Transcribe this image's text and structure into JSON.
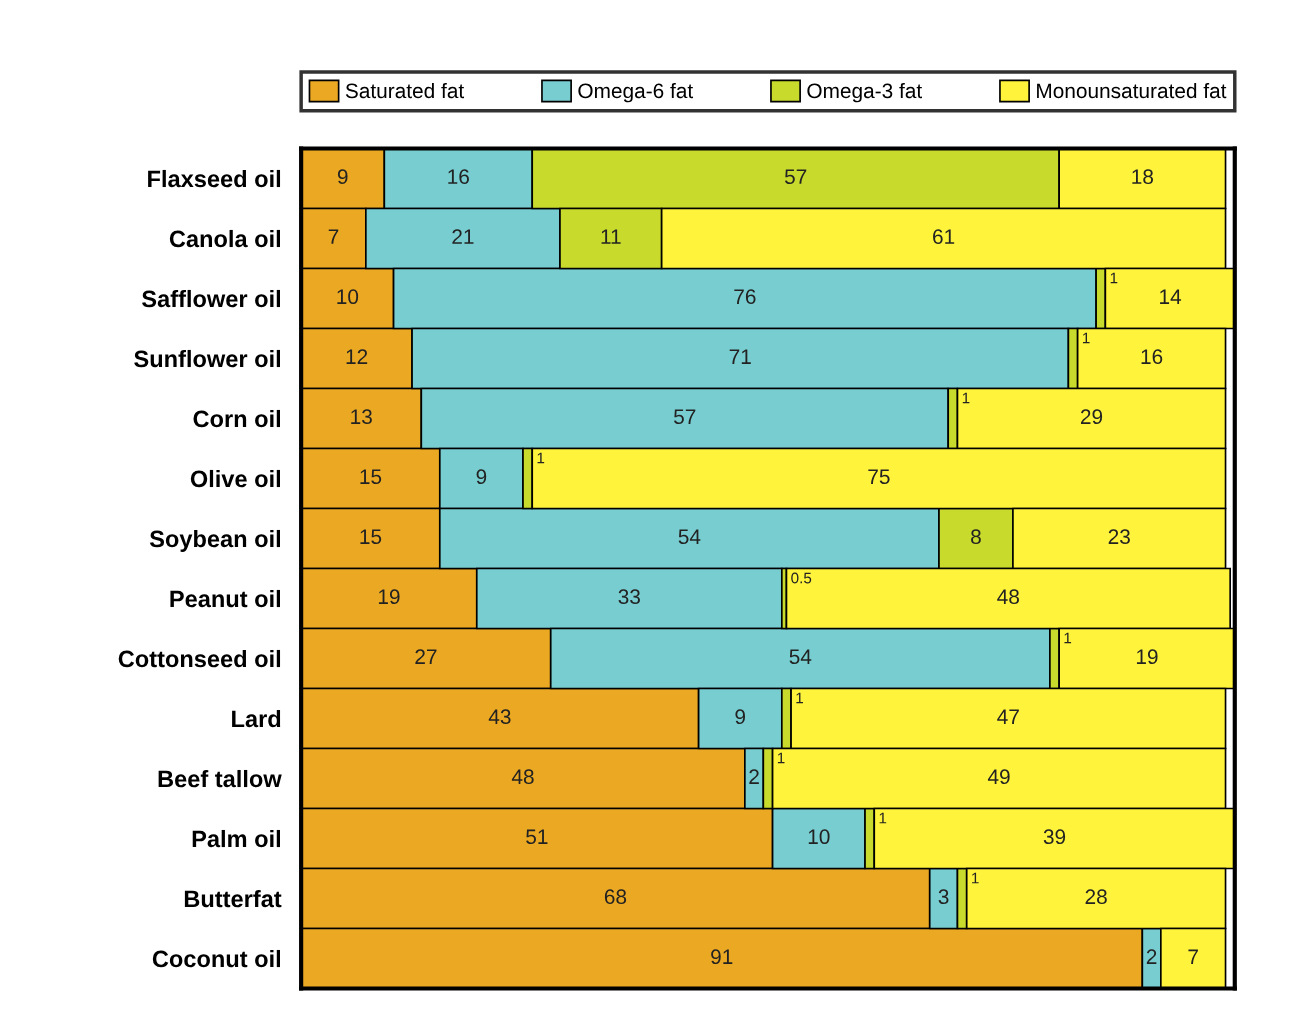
{
  "chart_data": {
    "type": "bar",
    "orientation": "horizontal",
    "stacked": true,
    "data_labels": true,
    "legend": "top",
    "grid": false,
    "tick_labels": "y",
    "categories": [
      "Flaxseed oil",
      "Canola oil",
      "Safflower oil",
      "Sunflower oil",
      "Corn oil",
      "Olive oil",
      "Soybean oil",
      "Peanut oil",
      "Cottonseed oil",
      "Lard",
      "Beef tallow",
      "Palm oil",
      "Butterfat",
      "Coconut oil"
    ],
    "series": [
      {
        "name": "Saturated fat",
        "color": "#eba823",
        "values": [
          9,
          7,
          10,
          12,
          13,
          15,
          15,
          19,
          27,
          43,
          48,
          51,
          68,
          91
        ]
      },
      {
        "name": "Omega-6 fat",
        "color": "#77cdd0",
        "values": [
          16,
          21,
          76,
          71,
          57,
          9,
          54,
          33,
          54,
          9,
          2,
          10,
          3,
          2
        ]
      },
      {
        "name": "Omega-3 fat",
        "color": "#c8db2c",
        "values": [
          57,
          11,
          1,
          1,
          1,
          1,
          8,
          0.5,
          1,
          1,
          1,
          1,
          1,
          null
        ]
      },
      {
        "name": "Monounsaturated fat",
        "color": "#fff33b",
        "values": [
          18,
          61,
          14,
          16,
          29,
          75,
          23,
          48,
          19,
          47,
          49,
          39,
          28,
          7
        ]
      }
    ]
  }
}
